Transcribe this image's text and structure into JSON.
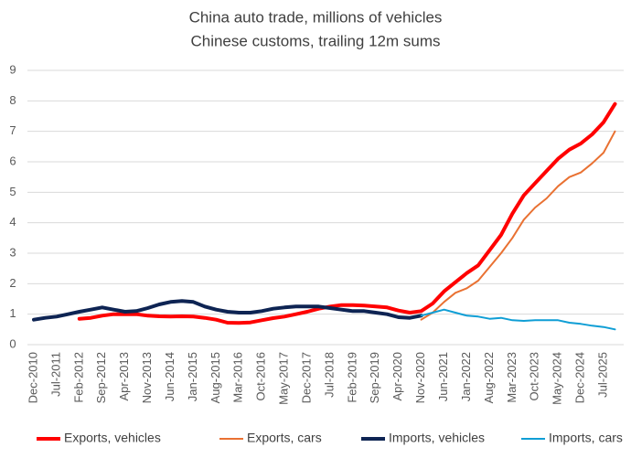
{
  "chart_data": {
    "type": "line",
    "title": "China auto trade, millions of vehicles",
    "subtitle": "Chinese customs, trailing 12m sums",
    "categories": [
      "Dec-2010",
      null,
      "Jul-2011",
      null,
      "Feb-2012",
      null,
      "Sep-2012",
      null,
      "Apr-2013",
      null,
      "Nov-2013",
      null,
      "Jun-2014",
      null,
      "Jan-2015",
      null,
      "Aug-2015",
      null,
      "Mar-2016",
      null,
      "Oct-2016",
      null,
      "May-2017",
      null,
      "Dec-2017",
      null,
      "Jul-2018",
      null,
      "Feb-2019",
      null,
      "Sep-2019",
      null,
      "Apr-2020",
      null,
      "Nov-2020",
      null,
      "Jun-2021",
      null,
      "Jan-2022",
      null,
      "Aug-2022",
      null,
      "Mar-2023",
      null,
      "Oct-2023",
      null,
      "May-2024",
      null,
      "Dec-2024",
      null,
      "Jul-2025",
      null
    ],
    "series": [
      {
        "name": "Exports, vehicles",
        "color": "#ff0000",
        "width": 4,
        "values": [
          null,
          null,
          null,
          null,
          0.85,
          0.88,
          0.95,
          1.0,
          1.0,
          1.0,
          0.95,
          0.93,
          0.92,
          0.93,
          0.92,
          0.88,
          0.82,
          0.72,
          0.71,
          0.73,
          0.8,
          0.87,
          0.92,
          1.0,
          1.08,
          1.18,
          1.25,
          1.3,
          1.3,
          1.28,
          1.25,
          1.22,
          1.12,
          1.05,
          1.1,
          1.35,
          1.75,
          2.05,
          2.35,
          2.6,
          3.1,
          3.6,
          4.3,
          4.9,
          5.3,
          5.7,
          6.1,
          6.4,
          6.6,
          6.9,
          7.3,
          7.9
        ]
      },
      {
        "name": "Exports, cars",
        "color": "#e97132",
        "width": 2,
        "values": [
          null,
          null,
          null,
          null,
          null,
          null,
          null,
          null,
          null,
          null,
          null,
          null,
          null,
          null,
          null,
          null,
          null,
          null,
          null,
          null,
          null,
          null,
          null,
          null,
          null,
          null,
          null,
          null,
          null,
          null,
          null,
          null,
          null,
          null,
          0.82,
          1.05,
          1.4,
          1.7,
          1.85,
          2.1,
          2.55,
          3.0,
          3.5,
          4.1,
          4.5,
          4.8,
          5.2,
          5.5,
          5.65,
          5.95,
          6.3,
          7.0
        ]
      },
      {
        "name": "Imports, vehicles",
        "color": "#0e2453",
        "width": 4,
        "values": [
          0.82,
          0.88,
          0.92,
          1.0,
          1.08,
          1.15,
          1.22,
          1.15,
          1.08,
          1.1,
          1.2,
          1.32,
          1.4,
          1.43,
          1.4,
          1.25,
          1.15,
          1.08,
          1.05,
          1.05,
          1.1,
          1.18,
          1.22,
          1.25,
          1.25,
          1.25,
          1.2,
          1.15,
          1.1,
          1.1,
          1.05,
          1.0,
          0.9,
          0.88,
          0.95,
          null,
          null,
          null,
          null,
          null,
          null,
          null,
          null,
          null,
          null,
          null,
          null,
          null,
          null,
          null,
          null,
          null
        ]
      },
      {
        "name": "Imports, cars",
        "color": "#0f9ed5",
        "width": 2,
        "values": [
          null,
          null,
          null,
          null,
          null,
          null,
          null,
          null,
          null,
          null,
          null,
          null,
          null,
          null,
          null,
          null,
          null,
          null,
          null,
          null,
          null,
          null,
          null,
          null,
          null,
          null,
          null,
          null,
          null,
          null,
          null,
          null,
          null,
          null,
          0.95,
          1.05,
          1.15,
          1.05,
          0.95,
          0.92,
          0.85,
          0.88,
          0.8,
          0.78,
          0.8,
          0.8,
          0.8,
          0.72,
          0.68,
          0.62,
          0.58,
          0.5
        ]
      }
    ],
    "ylim": [
      0,
      9
    ],
    "yticks": [
      0,
      1,
      2,
      3,
      4,
      5,
      6,
      7,
      8,
      9
    ],
    "grid": true,
    "legend": "bottom"
  }
}
